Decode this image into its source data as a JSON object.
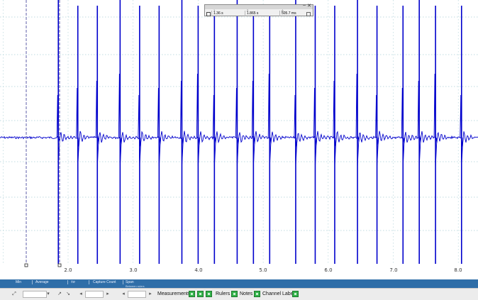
{
  "time_axis": {
    "ticks": [
      "2.0",
      "3.0",
      "4.0",
      "5.0",
      "6.0",
      "7.0",
      "8.0"
    ]
  },
  "waveform": {
    "color": "#0000cc",
    "spike_times": [
      1.85,
      2.15,
      2.45,
      2.8,
      3.1,
      3.4,
      3.75,
      4.0,
      4.25,
      4.6,
      4.85,
      5.1,
      5.5,
      5.8,
      6.1,
      6.45,
      6.75,
      7.15,
      7.4,
      7.65,
      8.05
    ]
  },
  "ruler_window": {
    "headers": [
      "1",
      "2",
      "Δ"
    ],
    "values": [
      "1.36 s",
      "1.865 s",
      "505.7 ms"
    ],
    "close": "✕",
    "minimize": "–"
  },
  "measurements_strip": {
    "columns": [
      "Min",
      "Average",
      "±σ",
      "Capture Count",
      "Span"
    ],
    "span_sub": "Between rulers"
  },
  "toolbar": {
    "measurements_label": "Measurements",
    "rulers_label": "Rulers",
    "notes_label": "Notes",
    "channel_labels_label": "Channel Labels"
  },
  "colors": {
    "trace": "#0000cc",
    "ruler": "#7a7ab8",
    "grid": "#aacfd6",
    "accent": "#2f6ea8"
  }
}
